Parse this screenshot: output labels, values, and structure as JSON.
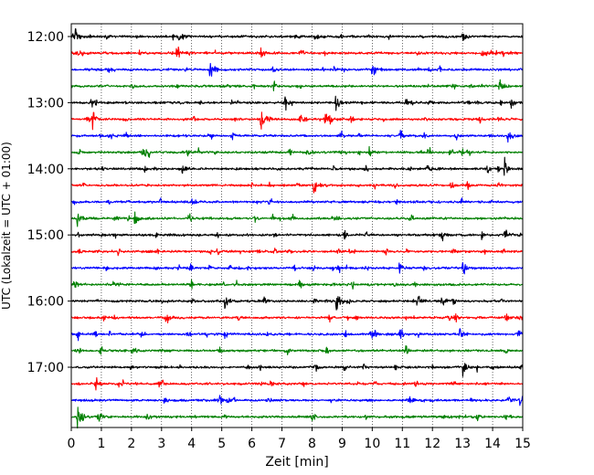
{
  "chart_data": {
    "type": "line",
    "xlabel": "Zeit  [min]",
    "ylabel": "UTC (Lokalzeit = UTC + 01:00)",
    "xlim": [
      0,
      15
    ],
    "x_ticks": [
      "0",
      "1",
      "2",
      "3",
      "4",
      "5",
      "6",
      "7",
      "8",
      "9",
      "10",
      "11",
      "12",
      "13",
      "14",
      "15"
    ],
    "y_ticks": [
      "12:00",
      "13:00",
      "14:00",
      "15:00",
      "16:00",
      "17:00"
    ],
    "grid_x": true,
    "trace_interval_min": 15,
    "trace_count": 24,
    "trace_colors": [
      "#000000",
      "#ff0000",
      "#0000ff",
      "#008000"
    ],
    "events": [
      {
        "trace": 0,
        "t": 0.15,
        "a": 8
      },
      {
        "trace": 0,
        "t": 3.6,
        "a": 9
      },
      {
        "trace": 0,
        "t": 8.1,
        "a": 6
      },
      {
        "trace": 0,
        "t": 13.0,
        "a": 6
      },
      {
        "trace": 1,
        "t": 0.1,
        "a": 5
      },
      {
        "trace": 1,
        "t": 3.5,
        "a": 8
      },
      {
        "trace": 1,
        "t": 6.3,
        "a": 6
      },
      {
        "trace": 2,
        "t": 10.0,
        "a": 11
      },
      {
        "trace": 2,
        "t": 4.6,
        "a": 5
      },
      {
        "trace": 3,
        "t": 14.2,
        "a": 9
      },
      {
        "trace": 3,
        "t": 2.0,
        "a": 4
      },
      {
        "trace": 4,
        "t": 7.1,
        "a": 10
      },
      {
        "trace": 4,
        "t": 8.8,
        "a": 9
      },
      {
        "trace": 4,
        "t": 14.6,
        "a": 6
      },
      {
        "trace": 5,
        "t": 0.7,
        "a": 7
      },
      {
        "trace": 5,
        "t": 6.3,
        "a": 12
      },
      {
        "trace": 6,
        "t": 10.9,
        "a": 7
      },
      {
        "trace": 6,
        "t": 14.5,
        "a": 8
      },
      {
        "trace": 7,
        "t": 9.9,
        "a": 7
      },
      {
        "trace": 7,
        "t": 7.8,
        "a": 5
      },
      {
        "trace": 8,
        "t": 3.7,
        "a": 9
      },
      {
        "trace": 8,
        "t": 14.4,
        "a": 9
      },
      {
        "trace": 8,
        "t": 11.8,
        "a": 6
      },
      {
        "trace": 9,
        "t": 8.05,
        "a": 14
      },
      {
        "trace": 9,
        "t": 12.6,
        "a": 6
      },
      {
        "trace": 10,
        "t": 4.0,
        "a": 4
      },
      {
        "trace": 11,
        "t": 0.2,
        "a": 9
      },
      {
        "trace": 11,
        "t": 2.1,
        "a": 8
      },
      {
        "trace": 11,
        "t": 3.9,
        "a": 7
      },
      {
        "trace": 12,
        "t": 12.3,
        "a": 7
      },
      {
        "trace": 12,
        "t": 14.4,
        "a": 8
      },
      {
        "trace": 14,
        "t": 10.9,
        "a": 6
      },
      {
        "trace": 14,
        "t": 13.0,
        "a": 7
      },
      {
        "trace": 15,
        "t": 0.1,
        "a": 6
      },
      {
        "trace": 15,
        "t": 1.4,
        "a": 5
      },
      {
        "trace": 16,
        "t": 5.1,
        "a": 8
      },
      {
        "trace": 16,
        "t": 8.8,
        "a": 12
      },
      {
        "trace": 16,
        "t": 11.5,
        "a": 8
      },
      {
        "trace": 16,
        "t": 12.3,
        "a": 6
      },
      {
        "trace": 17,
        "t": 3.1,
        "a": 8
      },
      {
        "trace": 17,
        "t": 12.5,
        "a": 8
      },
      {
        "trace": 18,
        "t": 10.9,
        "a": 8
      },
      {
        "trace": 18,
        "t": 12.9,
        "a": 7
      },
      {
        "trace": 19,
        "t": 2.0,
        "a": 5
      },
      {
        "trace": 20,
        "t": 13.0,
        "a": 9
      },
      {
        "trace": 21,
        "t": 0.8,
        "a": 8
      },
      {
        "trace": 21,
        "t": 2.9,
        "a": 5
      },
      {
        "trace": 22,
        "t": 14.9,
        "a": 7
      },
      {
        "trace": 22,
        "t": 3.1,
        "a": 4
      },
      {
        "trace": 23,
        "t": 0.2,
        "a": 12
      },
      {
        "trace": 23,
        "t": 0.9,
        "a": 8
      },
      {
        "trace": 23,
        "t": 2.5,
        "a": 6
      }
    ]
  }
}
